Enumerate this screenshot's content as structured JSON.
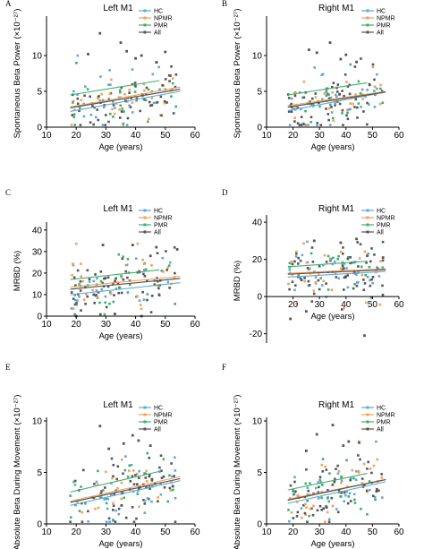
{
  "colors": {
    "HC": "#5ea8d8",
    "NPMR": "#f3a158",
    "PMR": "#3fae6e",
    "All": "#555555"
  },
  "chart_data": [
    {
      "type": "scatter",
      "letter": "A",
      "title": "Left M1",
      "xlabel": "Age (years)",
      "ylabel": "Spontaneous Beta Power",
      "ylabel_unit": "(×10⁻²⁷)",
      "xlim": [
        10,
        60
      ],
      "ylim": [
        0,
        15
      ],
      "xticks": [
        10,
        20,
        30,
        40,
        50,
        60
      ],
      "yticks": [
        0,
        5,
        10
      ],
      "legend": [
        "HC",
        "NPMR",
        "PMR",
        "All"
      ],
      "seed": 11,
      "lines": [
        {
          "name": "HC",
          "x": [
            18,
            55
          ],
          "y": [
            2.2,
            5.0
          ]
        },
        {
          "name": "NPMR",
          "x": [
            18,
            55
          ],
          "y": [
            2.8,
            5.6
          ]
        },
        {
          "name": "PMR",
          "x": [
            18,
            48
          ],
          "y": [
            4.5,
            6.5
          ]
        },
        {
          "name": "All",
          "x": [
            18,
            55
          ],
          "y": [
            2.7,
            5.3
          ]
        }
      ],
      "scatter_center": 4.5,
      "scatter_spread": 2.0,
      "points": [
        [
          28,
          13.1
        ],
        [
          24,
          10.2
        ],
        [
          35,
          11.8
        ],
        [
          37,
          10.6
        ],
        [
          42,
          10.0
        ],
        [
          40,
          9.6
        ],
        [
          50,
          10.5
        ]
      ]
    },
    {
      "type": "scatter",
      "letter": "B",
      "title": "Right M1",
      "xlabel": "Age (years)",
      "ylabel": "Spontaneous Beta Power",
      "ylabel_unit": "(×10⁻²⁷)",
      "xlim": [
        10,
        60
      ],
      "ylim": [
        0,
        15
      ],
      "xticks": [
        10,
        20,
        30,
        40,
        50,
        60
      ],
      "yticks": [
        0,
        5,
        10
      ],
      "legend": [
        "HC",
        "NPMR",
        "PMR",
        "All"
      ],
      "seed": 23,
      "lines": [
        {
          "name": "HC",
          "x": [
            18,
            55
          ],
          "y": [
            2.3,
            4.9
          ]
        },
        {
          "name": "NPMR",
          "x": [
            18,
            55
          ],
          "y": [
            3.0,
            5.0
          ]
        },
        {
          "name": "PMR",
          "x": [
            18,
            48
          ],
          "y": [
            4.5,
            6.2
          ]
        },
        {
          "name": "All",
          "x": [
            18,
            55
          ],
          "y": [
            2.8,
            4.9
          ]
        }
      ],
      "scatter_center": 4.2,
      "scatter_spread": 2.0,
      "points": [
        [
          34,
          11.8
        ],
        [
          26,
          10.8
        ],
        [
          29,
          10.4
        ],
        [
          40,
          10.1
        ],
        [
          38,
          9.5
        ],
        [
          44,
          9.1
        ]
      ]
    },
    {
      "type": "scatter",
      "letter": "C",
      "title": "Left M1",
      "xlabel": "Age (years)",
      "ylabel": "MRBD (%)",
      "ylabel_unit": "",
      "xlim": [
        10,
        60
      ],
      "ylim": [
        0,
        42
      ],
      "xticks": [
        10,
        20,
        30,
        40,
        50,
        60
      ],
      "yticks": [
        0,
        10,
        20,
        30,
        40
      ],
      "legend": [
        "HC",
        "NPMR",
        "PMR",
        "All"
      ],
      "seed": 37,
      "lines": [
        {
          "name": "HC",
          "x": [
            18,
            55
          ],
          "y": [
            10.0,
            15.5
          ]
        },
        {
          "name": "NPMR",
          "x": [
            18,
            55
          ],
          "y": [
            13.5,
            18.5
          ]
        },
        {
          "name": "PMR",
          "x": [
            18,
            48
          ],
          "y": [
            17.0,
            21.5
          ]
        },
        {
          "name": "All",
          "x": [
            18,
            55
          ],
          "y": [
            12.5,
            17.5
          ]
        }
      ],
      "scatter_center": 15,
      "scatter_spread": 7,
      "points": [
        [
          54,
          31
        ],
        [
          47,
          32
        ],
        [
          39,
          33
        ],
        [
          29,
          33
        ],
        [
          45,
          28
        ],
        [
          20,
          0
        ],
        [
          33,
          1
        ],
        [
          42,
          0
        ]
      ]
    },
    {
      "type": "scatter",
      "letter": "D",
      "title": "Right M1",
      "xlabel": "Age (years)",
      "ylabel": "MRBD (%)",
      "ylabel_unit": "",
      "xlim": [
        10,
        60
      ],
      "ylim": [
        -25,
        42
      ],
      "xticks": [
        20,
        30,
        40,
        50,
        60
      ],
      "yticks": [
        -20,
        0,
        20,
        40
      ],
      "legend": [
        "HC",
        "NPMR",
        "PMR",
        "All"
      ],
      "seed": 53,
      "lines": [
        {
          "name": "HC",
          "x": [
            18,
            55
          ],
          "y": [
            10.5,
            13.5
          ]
        },
        {
          "name": "NPMR",
          "x": [
            18,
            55
          ],
          "y": [
            12.5,
            15.0
          ]
        },
        {
          "name": "PMR",
          "x": [
            18,
            48
          ],
          "y": [
            16.0,
            19.0
          ]
        },
        {
          "name": "All",
          "x": [
            18,
            55
          ],
          "y": [
            12.0,
            14.5
          ]
        }
      ],
      "scatter_center": 14,
      "scatter_spread": 8,
      "points": [
        [
          47,
          -21
        ],
        [
          19,
          -12
        ],
        [
          25,
          -8
        ],
        [
          38,
          29
        ],
        [
          44,
          31
        ],
        [
          54,
          21
        ],
        [
          28,
          30
        ]
      ]
    },
    {
      "type": "scatter",
      "letter": "E",
      "title": "Left M1",
      "xlabel": "Age (years)",
      "ylabel": "Absolute Beta During Movement",
      "ylabel_unit": "(×10⁻²⁷)",
      "xlim": [
        10,
        60
      ],
      "ylim": [
        0,
        10
      ],
      "xticks": [
        10,
        20,
        30,
        40,
        50,
        60
      ],
      "yticks": [
        0,
        5,
        10
      ],
      "legend": [
        "HC",
        "NPMR",
        "PMR",
        "All"
      ],
      "seed": 71,
      "lines": [
        {
          "name": "HC",
          "x": [
            18,
            55
          ],
          "y": [
            1.8,
            4.2
          ]
        },
        {
          "name": "NPMR",
          "x": [
            18,
            55
          ],
          "y": [
            2.2,
            4.6
          ]
        },
        {
          "name": "PMR",
          "x": [
            18,
            48
          ],
          "y": [
            3.1,
            5.1
          ]
        },
        {
          "name": "All",
          "x": [
            18,
            55
          ],
          "y": [
            2.1,
            4.4
          ]
        }
      ],
      "scatter_center": 3.3,
      "scatter_spread": 1.5,
      "points": [
        [
          28,
          9.5
        ],
        [
          39,
          8.6
        ],
        [
          41,
          8.1
        ],
        [
          45,
          7.6
        ],
        [
          36,
          7.8
        ],
        [
          31,
          7.3
        ]
      ]
    },
    {
      "type": "scatter",
      "letter": "F",
      "title": "Right M1",
      "xlabel": "Age (years)",
      "ylabel": "Absolute Beta During Movement",
      "ylabel_unit": "(×10⁻²⁷)",
      "xlim": [
        10,
        60
      ],
      "ylim": [
        0,
        10
      ],
      "xticks": [
        10,
        20,
        30,
        40,
        50,
        60
      ],
      "yticks": [
        0,
        5,
        10
      ],
      "legend": [
        "HC",
        "NPMR",
        "PMR",
        "All"
      ],
      "seed": 89,
      "lines": [
        {
          "name": "HC",
          "x": [
            18,
            55
          ],
          "y": [
            2.0,
            4.1
          ]
        },
        {
          "name": "NPMR",
          "x": [
            18,
            55
          ],
          "y": [
            2.4,
            4.3
          ]
        },
        {
          "name": "PMR",
          "x": [
            18,
            48
          ],
          "y": [
            3.3,
            4.9
          ]
        },
        {
          "name": "All",
          "x": [
            18,
            55
          ],
          "y": [
            2.3,
            4.3
          ]
        }
      ],
      "scatter_center": 3.3,
      "scatter_spread": 1.5,
      "points": [
        [
          29,
          8.7
        ],
        [
          41,
          8.0
        ],
        [
          35,
          9.6
        ],
        [
          39,
          7.6
        ],
        [
          45,
          7.9
        ],
        [
          25,
          7.1
        ]
      ]
    }
  ]
}
